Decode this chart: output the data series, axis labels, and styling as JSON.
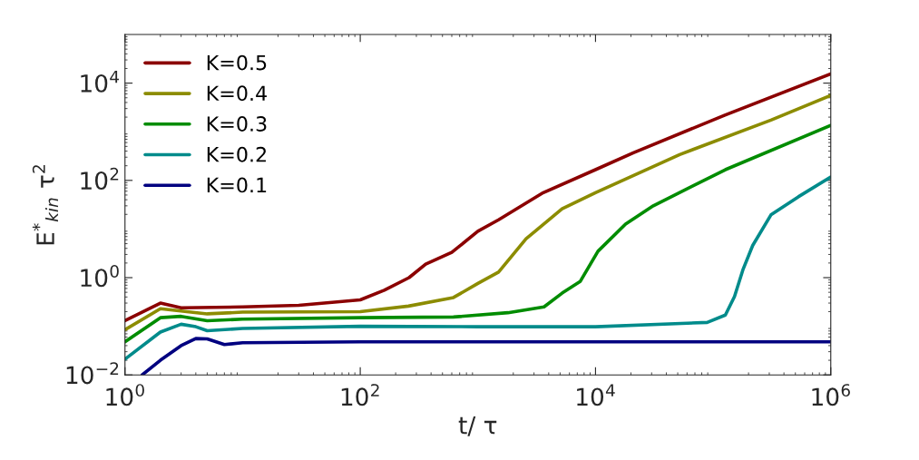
{
  "chart_data": {
    "type": "line",
    "xlabel": "t/ τ",
    "ylabel": "E$^{*}$$_{kin}$ τ$^{2}$",
    "log": "xy",
    "grid": false,
    "legend": "top left",
    "marker": "none",
    "line_style": "solid",
    "xlim": [
      1,
      1000000
    ],
    "ylim": [
      0.01,
      100000
    ],
    "xticks": [
      {
        "value": 1,
        "label": "10$^{0}$"
      },
      {
        "value": 100,
        "label": "10$^{2}$"
      },
      {
        "value": 10000,
        "label": "10$^{4}$"
      },
      {
        "value": 1000000,
        "label": "10$^{6}$"
      }
    ],
    "yticks": [
      {
        "value": 0.01,
        "label": "10$^{−2}$"
      },
      {
        "value": 1,
        "label": "10$^{0}$"
      },
      {
        "value": 100,
        "label": "10$^{2}$"
      },
      {
        "value": 10000,
        "label": "10$^{4}$"
      }
    ],
    "series": [
      {
        "name": "K=0.5",
        "color": "#8b0000",
        "x": [
          1,
          2,
          3,
          10,
          30,
          100,
          160,
          260,
          360,
          600,
          1000,
          1500,
          3600,
          10000,
          21000,
          126000,
          1000000
        ],
        "values": [
          0.13,
          0.3,
          0.24,
          0.25,
          0.27,
          0.35,
          0.55,
          1.0,
          1.9,
          3.3,
          9.0,
          15.5,
          56,
          166,
          370,
          2200,
          15500
        ]
      },
      {
        "name": "K=0.4",
        "color": "#8c8c00",
        "x": [
          1,
          2,
          5,
          10,
          100,
          257,
          620,
          1000,
          1500,
          2570,
          5200,
          10000,
          52000,
          310000,
          1000000
        ],
        "values": [
          0.085,
          0.23,
          0.18,
          0.195,
          0.2,
          0.26,
          0.39,
          0.76,
          1.3,
          6.3,
          26,
          56,
          340,
          1740,
          5600
        ]
      },
      {
        "name": "K=0.3",
        "color": "#008c00",
        "x": [
          1,
          2,
          3,
          5,
          10,
          100,
          620,
          1800,
          3650,
          5200,
          7400,
          10500,
          18000,
          31000,
          127000,
          1000000
        ],
        "values": [
          0.048,
          0.15,
          0.16,
          0.13,
          0.14,
          0.15,
          0.155,
          0.19,
          0.25,
          0.48,
          0.83,
          3.5,
          12.6,
          30,
          166,
          1350
        ]
      },
      {
        "name": "K=0.2",
        "color": "#008b8b",
        "x": [
          1,
          2,
          3,
          4,
          5,
          10,
          100,
          1000,
          10000,
          89000,
          127000,
          152000,
          180000,
          217000,
          310000,
          530000,
          1000000
        ],
        "values": [
          0.021,
          0.076,
          0.11,
          0.098,
          0.081,
          0.09,
          0.1,
          0.098,
          0.098,
          0.12,
          0.17,
          0.41,
          1.5,
          4.6,
          19.5,
          46,
          117
        ]
      },
      {
        "name": "K=0.1",
        "color": "#000080",
        "x": [
          1.4,
          2,
          3,
          4,
          5,
          7,
          10,
          100,
          10000,
          1000000
        ],
        "values": [
          0.01,
          0.02,
          0.04,
          0.056,
          0.055,
          0.042,
          0.046,
          0.048,
          0.048,
          0.048
        ]
      }
    ]
  }
}
